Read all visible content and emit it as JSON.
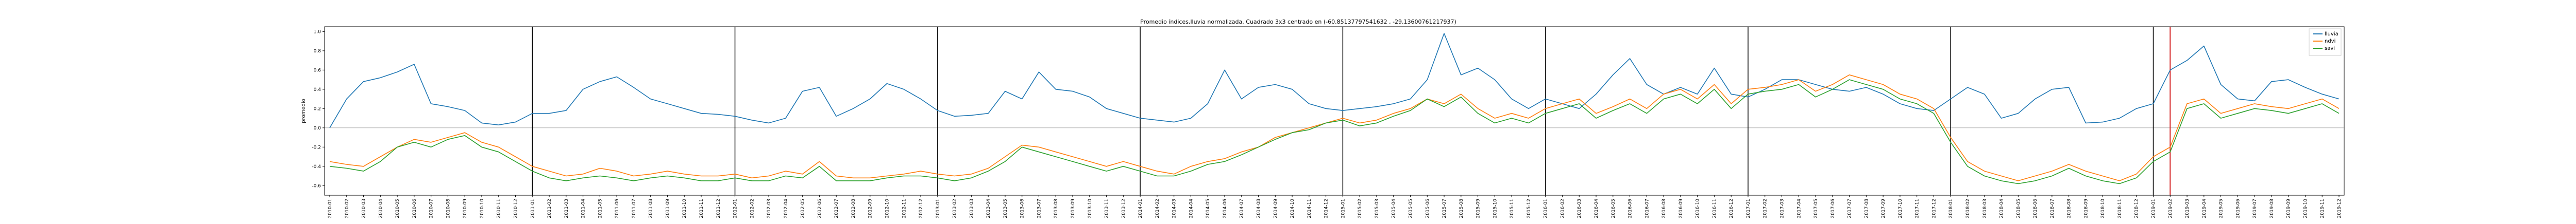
{
  "chart_data": {
    "type": "line",
    "title": "Promedio índices,lluvia normalizada. Cuadrado 3x3 centrado en (-60.85137797541632 , -29.13600761217937)",
    "xlabel": "",
    "ylabel": "promedio",
    "ylim": [
      -0.7,
      1.05
    ],
    "yticks": [
      -0.6,
      -0.4,
      -0.2,
      0.0,
      0.2,
      0.4,
      0.6,
      0.8,
      1.0
    ],
    "grid": false,
    "legend_position": "top-right",
    "zero_line": true,
    "x_dates": [
      "2010-01",
      "2010-02",
      "2010-03",
      "2010-04",
      "2010-05",
      "2010-06",
      "2010-07",
      "2010-08",
      "2010-09",
      "2010-10",
      "2010-11",
      "2010-12",
      "2011-01",
      "2011-02",
      "2011-03",
      "2011-04",
      "2011-05",
      "2011-06",
      "2011-07",
      "2011-08",
      "2011-09",
      "2011-10",
      "2011-11",
      "2011-12",
      "2012-01",
      "2012-02",
      "2012-03",
      "2012-04",
      "2012-05",
      "2012-06",
      "2012-07",
      "2012-08",
      "2012-09",
      "2012-10",
      "2012-11",
      "2012-12",
      "2013-01",
      "2013-02",
      "2013-03",
      "2013-04",
      "2013-05",
      "2013-06",
      "2013-07",
      "2013-08",
      "2013-09",
      "2013-10",
      "2013-11",
      "2013-12",
      "2014-01",
      "2014-02",
      "2014-03",
      "2014-04",
      "2014-05",
      "2014-06",
      "2014-07",
      "2014-08",
      "2014-09",
      "2014-10",
      "2014-11",
      "2014-12",
      "2015-01",
      "2015-02",
      "2015-03",
      "2015-04",
      "2015-05",
      "2015-06",
      "2015-07",
      "2015-08",
      "2015-09",
      "2015-10",
      "2015-11",
      "2015-12",
      "2016-01",
      "2016-02",
      "2016-03",
      "2016-04",
      "2016-05",
      "2016-06",
      "2016-07",
      "2016-08",
      "2016-09",
      "2016-10",
      "2016-11",
      "2016-12",
      "2017-01",
      "2017-02",
      "2017-03",
      "2017-04",
      "2017-05",
      "2017-06",
      "2017-07",
      "2017-08",
      "2017-09",
      "2017-10",
      "2017-11",
      "2017-12",
      "2018-01",
      "2018-02",
      "2018-03",
      "2018-04",
      "2018-05",
      "2018-06",
      "2018-07",
      "2018-08",
      "2018-09",
      "2018-10",
      "2018-11",
      "2018-12",
      "2019-01",
      "2019-02",
      "2019-03",
      "2019-04",
      "2019-05",
      "2019-06",
      "2019-07",
      "2019-08",
      "2019-09",
      "2019-10",
      "2019-11",
      "2019-12"
    ],
    "vlines_black": [
      "2011-01",
      "2012-01",
      "2013-01",
      "2014-01",
      "2015-01",
      "2016-01",
      "2017-01",
      "2018-01",
      "2019-01"
    ],
    "vline_red": "2019-02",
    "series": [
      {
        "name": "lluvia",
        "color": "#1f77b4",
        "values": [
          0.0,
          0.3,
          0.48,
          0.52,
          0.58,
          0.66,
          0.25,
          0.22,
          0.18,
          0.05,
          0.03,
          0.06,
          0.15,
          0.15,
          0.18,
          0.4,
          0.48,
          0.53,
          0.42,
          0.3,
          0.25,
          0.2,
          0.15,
          0.14,
          0.12,
          0.08,
          0.05,
          0.1,
          0.38,
          0.42,
          0.12,
          0.2,
          0.3,
          0.46,
          0.4,
          0.3,
          0.18,
          0.12,
          0.13,
          0.15,
          0.38,
          0.3,
          0.58,
          0.4,
          0.38,
          0.32,
          0.2,
          0.15,
          0.1,
          0.08,
          0.06,
          0.1,
          0.25,
          0.6,
          0.3,
          0.42,
          0.45,
          0.4,
          0.25,
          0.2,
          0.18,
          0.2,
          0.22,
          0.25,
          0.3,
          0.5,
          0.98,
          0.55,
          0.62,
          0.5,
          0.3,
          0.2,
          0.3,
          0.25,
          0.2,
          0.35,
          0.55,
          0.72,
          0.45,
          0.35,
          0.42,
          0.35,
          0.62,
          0.35,
          0.32,
          0.4,
          0.5,
          0.5,
          0.45,
          0.4,
          0.38,
          0.42,
          0.35,
          0.25,
          0.2,
          0.18,
          0.3,
          0.42,
          0.35,
          0.1,
          0.15,
          0.3,
          0.4,
          0.42,
          0.05,
          0.06,
          0.1,
          0.2,
          0.25,
          0.6,
          0.7,
          0.85,
          0.45,
          0.3,
          0.28,
          0.48,
          0.5,
          0.42,
          0.35,
          0.3
        ]
      },
      {
        "name": "ndvi",
        "color": "#ff7f0e",
        "values": [
          -0.35,
          -0.38,
          -0.4,
          -0.3,
          -0.2,
          -0.12,
          -0.15,
          -0.1,
          -0.05,
          -0.15,
          -0.2,
          -0.3,
          -0.4,
          -0.45,
          -0.5,
          -0.48,
          -0.42,
          -0.45,
          -0.5,
          -0.48,
          -0.45,
          -0.48,
          -0.5,
          -0.5,
          -0.48,
          -0.52,
          -0.5,
          -0.45,
          -0.48,
          -0.35,
          -0.5,
          -0.52,
          -0.52,
          -0.5,
          -0.48,
          -0.45,
          -0.48,
          -0.5,
          -0.48,
          -0.42,
          -0.3,
          -0.18,
          -0.2,
          -0.25,
          -0.3,
          -0.35,
          -0.4,
          -0.35,
          -0.4,
          -0.45,
          -0.48,
          -0.4,
          -0.35,
          -0.32,
          -0.25,
          -0.2,
          -0.1,
          -0.05,
          0.0,
          0.05,
          0.1,
          0.05,
          0.08,
          0.15,
          0.2,
          0.3,
          0.25,
          0.35,
          0.2,
          0.1,
          0.15,
          0.1,
          0.2,
          0.25,
          0.3,
          0.15,
          0.22,
          0.3,
          0.2,
          0.35,
          0.4,
          0.3,
          0.45,
          0.25,
          0.4,
          0.42,
          0.45,
          0.5,
          0.38,
          0.45,
          0.55,
          0.5,
          0.45,
          0.35,
          0.3,
          0.2,
          -0.1,
          -0.35,
          -0.45,
          -0.5,
          -0.55,
          -0.5,
          -0.45,
          -0.38,
          -0.45,
          -0.5,
          -0.55,
          -0.48,
          -0.3,
          -0.2,
          0.25,
          0.3,
          0.15,
          0.2,
          0.25,
          0.22,
          0.2,
          0.25,
          0.3,
          0.2
        ]
      },
      {
        "name": "savi",
        "color": "#2ca02c",
        "values": [
          -0.4,
          -0.42,
          -0.45,
          -0.35,
          -0.2,
          -0.15,
          -0.2,
          -0.12,
          -0.08,
          -0.2,
          -0.25,
          -0.35,
          -0.45,
          -0.52,
          -0.55,
          -0.52,
          -0.5,
          -0.52,
          -0.55,
          -0.52,
          -0.5,
          -0.52,
          -0.55,
          -0.55,
          -0.52,
          -0.55,
          -0.55,
          -0.5,
          -0.52,
          -0.4,
          -0.55,
          -0.55,
          -0.55,
          -0.52,
          -0.5,
          -0.5,
          -0.52,
          -0.55,
          -0.52,
          -0.45,
          -0.35,
          -0.2,
          -0.25,
          -0.3,
          -0.35,
          -0.4,
          -0.45,
          -0.4,
          -0.45,
          -0.5,
          -0.5,
          -0.45,
          -0.38,
          -0.35,
          -0.28,
          -0.2,
          -0.12,
          -0.05,
          -0.02,
          0.05,
          0.08,
          0.02,
          0.05,
          0.12,
          0.18,
          0.3,
          0.22,
          0.32,
          0.15,
          0.05,
          0.1,
          0.05,
          0.15,
          0.2,
          0.25,
          0.1,
          0.18,
          0.25,
          0.15,
          0.3,
          0.35,
          0.25,
          0.4,
          0.2,
          0.35,
          0.38,
          0.4,
          0.45,
          0.32,
          0.4,
          0.5,
          0.45,
          0.4,
          0.3,
          0.25,
          0.15,
          -0.15,
          -0.4,
          -0.5,
          -0.55,
          -0.58,
          -0.55,
          -0.5,
          -0.42,
          -0.5,
          -0.55,
          -0.58,
          -0.52,
          -0.35,
          -0.25,
          0.2,
          0.25,
          0.1,
          0.15,
          0.2,
          0.18,
          0.15,
          0.2,
          0.25,
          0.15
        ]
      }
    ]
  }
}
